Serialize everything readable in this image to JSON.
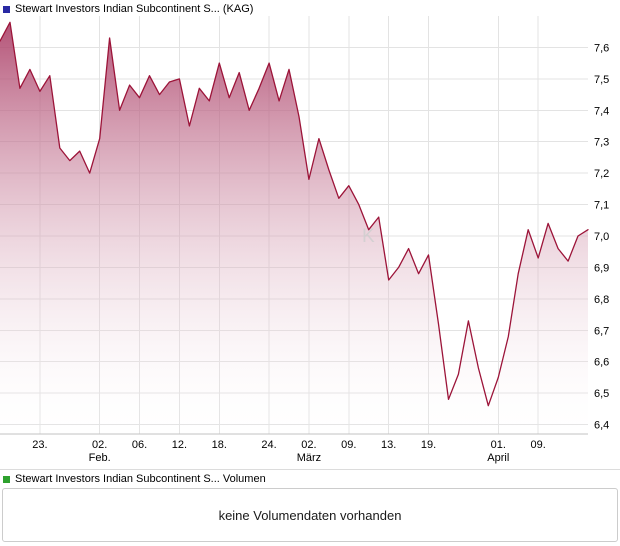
{
  "header": {
    "legend_label": "Stewart Investors Indian Subcontinent S... (KAG)",
    "legend_color": "#2929a3"
  },
  "volume_section": {
    "legend_label": "Stewart Investors Indian Subcontinent S... Volumen",
    "legend_color": "#2ea12e",
    "message": "keine Volumendaten vorhanden"
  },
  "watermark": "K",
  "chart_data": {
    "type": "area",
    "title": "Stewart Investors Indian Subcontinent S... (KAG)",
    "ylabel": "",
    "xlabel": "",
    "ylim": [
      6.37,
      7.7
    ],
    "grid": true,
    "y_ticks": [
      {
        "value": 7.6,
        "label": "7,6"
      },
      {
        "value": 7.5,
        "label": "7,5"
      },
      {
        "value": 7.4,
        "label": "7,4"
      },
      {
        "value": 7.3,
        "label": "7,3"
      },
      {
        "value": 7.2,
        "label": "7,2"
      },
      {
        "value": 7.1,
        "label": "7,1"
      },
      {
        "value": 7.0,
        "label": "7,0"
      },
      {
        "value": 6.9,
        "label": "6,9"
      },
      {
        "value": 6.8,
        "label": "6,8"
      },
      {
        "value": 6.7,
        "label": "6,7"
      },
      {
        "value": 6.6,
        "label": "6,6"
      },
      {
        "value": 6.5,
        "label": "6,5"
      },
      {
        "value": 6.4,
        "label": "6,4"
      }
    ],
    "x_ticks": [
      {
        "index": 4,
        "label": "23.",
        "sub": ""
      },
      {
        "index": 10,
        "label": "02.",
        "sub": "Feb."
      },
      {
        "index": 14,
        "label": "06.",
        "sub": ""
      },
      {
        "index": 18,
        "label": "12.",
        "sub": ""
      },
      {
        "index": 22,
        "label": "18.",
        "sub": ""
      },
      {
        "index": 27,
        "label": "24.",
        "sub": ""
      },
      {
        "index": 31,
        "label": "02.",
        "sub": "März"
      },
      {
        "index": 35,
        "label": "09.",
        "sub": ""
      },
      {
        "index": 39,
        "label": "13.",
        "sub": ""
      },
      {
        "index": 43,
        "label": "19.",
        "sub": ""
      },
      {
        "index": 50,
        "label": "01.",
        "sub": "April"
      },
      {
        "index": 54,
        "label": "09.",
        "sub": ""
      }
    ],
    "values": [
      7.62,
      7.68,
      7.47,
      7.53,
      7.46,
      7.51,
      7.28,
      7.24,
      7.27,
      7.2,
      7.31,
      7.63,
      7.4,
      7.48,
      7.44,
      7.51,
      7.45,
      7.49,
      7.5,
      7.35,
      7.47,
      7.43,
      7.55,
      7.44,
      7.52,
      7.4,
      7.47,
      7.55,
      7.43,
      7.53,
      7.38,
      7.18,
      7.31,
      7.21,
      7.12,
      7.16,
      7.1,
      7.02,
      7.06,
      6.86,
      6.9,
      6.96,
      6.88,
      6.94,
      6.72,
      6.48,
      6.56,
      6.73,
      6.58,
      6.46,
      6.55,
      6.68,
      6.88,
      7.02,
      6.93,
      7.04,
      6.96,
      6.92,
      7.0,
      7.02
    ],
    "colors": {
      "line": "#9c1439",
      "fill_top": "#a93a63",
      "fill_bottom": "#ffffff",
      "grid": "#e3e3e3",
      "axis": "#c0c0c0",
      "tick_text": "#000000",
      "watermark": "#cfcfcf"
    }
  }
}
